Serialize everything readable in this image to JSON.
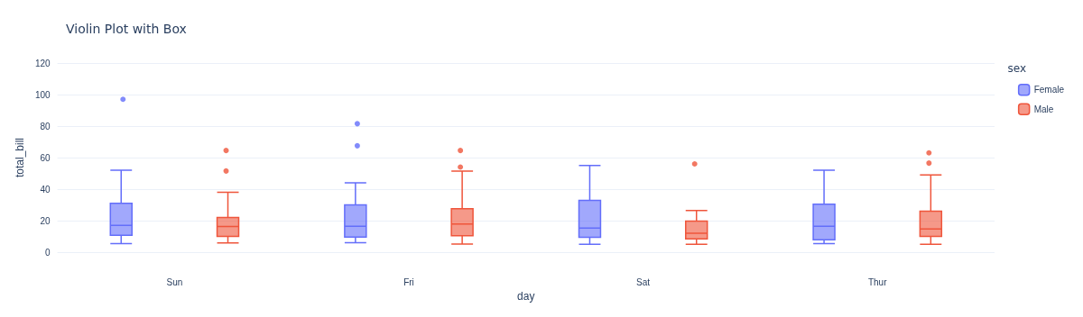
{
  "chart_data": {
    "type": "box",
    "title": "Violin Plot with Box",
    "xlabel": "day",
    "ylabel": "total_bill",
    "legend_title": "sex",
    "categories": [
      "Sun",
      "Fri",
      "Sat",
      "Thur"
    ],
    "series": [
      {
        "name": "Female",
        "color": "#636efa",
        "boxes": [
          {
            "low": 5.5,
            "q1": 10.7,
            "median": 17,
            "q3": 31,
            "high": 52,
            "outliers": [
              97
            ]
          },
          {
            "low": 6,
            "q1": 9.6,
            "median": 16.5,
            "q3": 30,
            "high": 44,
            "outliers": [
              67.5,
              81.5
            ]
          },
          {
            "low": 5,
            "q1": 9.4,
            "median": 15.3,
            "q3": 32.8,
            "high": 55
          },
          {
            "low": 5.5,
            "q1": 7.8,
            "median": 16.5,
            "q3": 30.5,
            "high": 52
          }
        ]
      },
      {
        "name": "Male",
        "color": "#ef553b",
        "boxes": [
          {
            "low": 5.8,
            "q1": 10,
            "median": 16.3,
            "q3": 22,
            "high": 38,
            "outliers": [
              51.5,
              64.5
            ]
          },
          {
            "low": 5.2,
            "q1": 10.5,
            "median": 17.8,
            "q3": 27.6,
            "high": 51.5,
            "outliers": [
              54,
              64.5
            ]
          },
          {
            "low": 5,
            "q1": 8.4,
            "median": 12,
            "q3": 19.7,
            "high": 26.5,
            "outliers": [
              56
            ]
          },
          {
            "low": 5,
            "q1": 10,
            "median": 14.7,
            "q3": 26,
            "high": 49,
            "outliers": [
              56.5,
              63
            ]
          }
        ]
      }
    ],
    "ylim": [
      0,
      120
    ],
    "yticks": [
      0,
      20,
      40,
      60,
      80,
      100,
      120
    ],
    "grid": "y",
    "legend": "top right"
  }
}
